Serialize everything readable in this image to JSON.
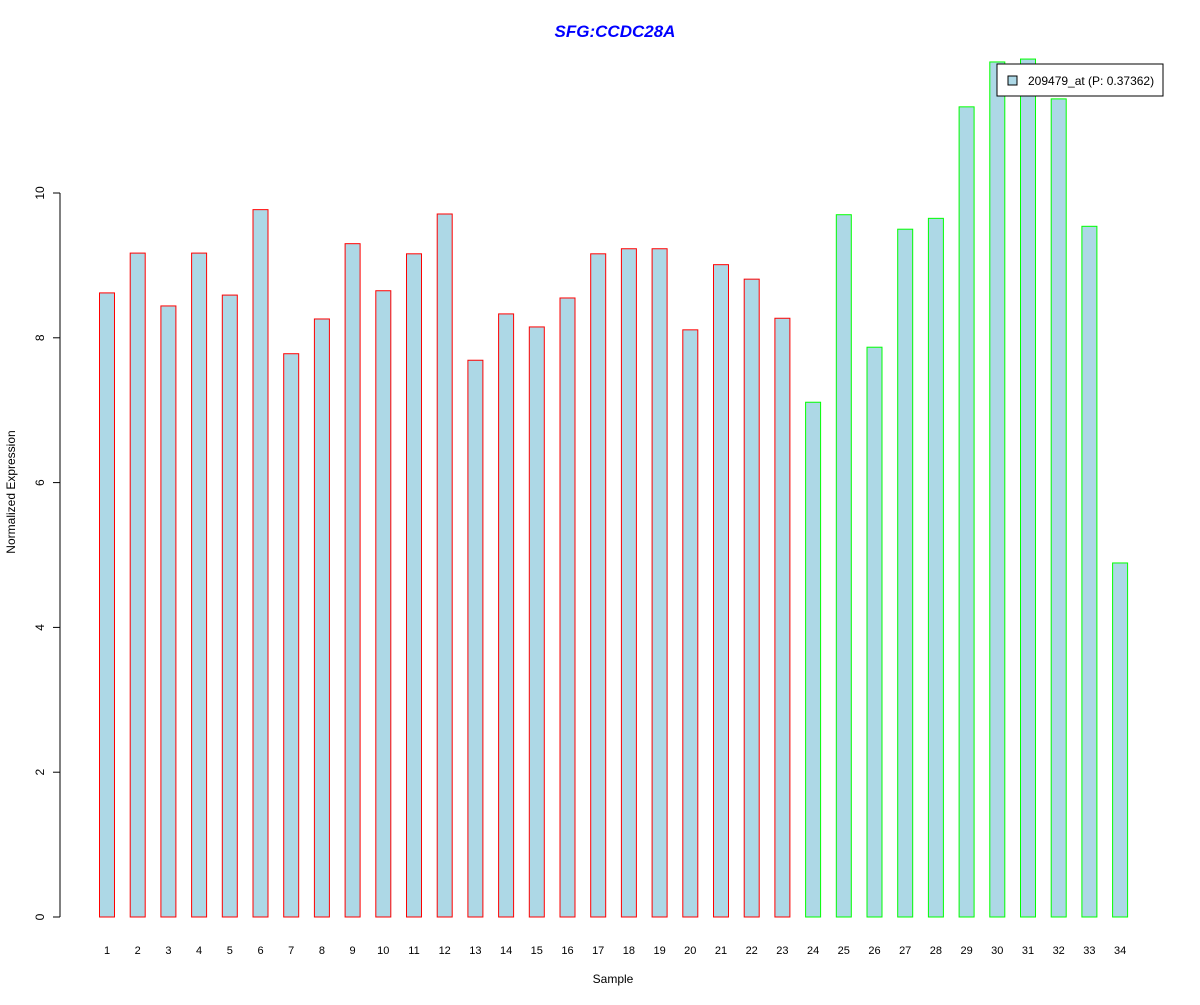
{
  "chart_data": {
    "type": "bar",
    "title": "SFG:CCDC28A",
    "xlabel": "Sample",
    "ylabel": "Normalized Expression",
    "ylim": [
      0,
      12
    ],
    "yticks": [
      0,
      2,
      4,
      6,
      8,
      10
    ],
    "categories": [
      "1",
      "2",
      "3",
      "4",
      "5",
      "6",
      "7",
      "8",
      "9",
      "10",
      "11",
      "12",
      "13",
      "14",
      "15",
      "16",
      "17",
      "18",
      "19",
      "20",
      "21",
      "22",
      "23",
      "24",
      "25",
      "26",
      "27",
      "28",
      "29",
      "30",
      "31",
      "32",
      "33",
      "34"
    ],
    "values": [
      8.62,
      9.17,
      8.44,
      9.17,
      8.59,
      9.77,
      7.78,
      8.26,
      9.3,
      8.65,
      9.16,
      9.71,
      7.69,
      8.33,
      8.15,
      8.55,
      9.16,
      9.23,
      9.23,
      8.11,
      9.01,
      8.81,
      8.27,
      7.11,
      9.7,
      7.87,
      9.5,
      9.65,
      11.19,
      11.81,
      11.85,
      11.3,
      9.54,
      4.89
    ],
    "groups": [
      "a",
      "a",
      "a",
      "a",
      "a",
      "a",
      "a",
      "a",
      "a",
      "a",
      "a",
      "a",
      "a",
      "a",
      "a",
      "a",
      "a",
      "a",
      "a",
      "a",
      "a",
      "a",
      "a",
      "b",
      "b",
      "b",
      "b",
      "b",
      "b",
      "b",
      "b",
      "b",
      "b",
      "b"
    ],
    "colors": {
      "fill": "#add8e6",
      "group_a_border": "#ff0000",
      "group_b_border": "#00ff00",
      "title": "#0000ff"
    },
    "legend": {
      "label": "209479_at (P: 0.37362)",
      "position": "top-right"
    }
  }
}
